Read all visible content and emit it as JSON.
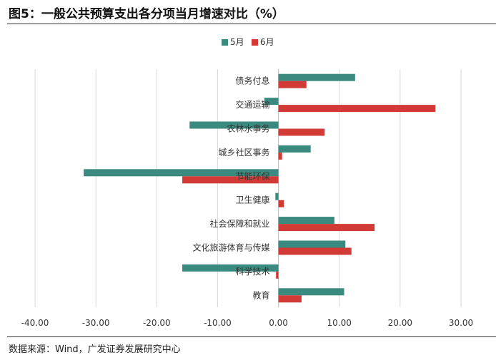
{
  "header": {
    "title": "图5：一般公共预算支出各分项当月增速对比（%）"
  },
  "footer": {
    "source": "数据来源：Wind，广发证券发展研究中心"
  },
  "colors": {
    "may": "#3a8a7f",
    "june": "#d23b35",
    "grid": "#d9d9d9"
  },
  "chart_data": {
    "type": "bar",
    "orientation": "horizontal",
    "title": "一般公共预算支出各分项当月增速对比（%）",
    "xlabel": "",
    "ylabel": "",
    "xlim": [
      -40,
      30
    ],
    "ticks": [
      "-40.00",
      "-30.00",
      "-20.00",
      "-10.00",
      "0.00",
      "10.00",
      "20.00",
      "30.00"
    ],
    "tick_values": [
      -40,
      -30,
      -20,
      -10,
      0,
      10,
      20,
      30
    ],
    "grid": true,
    "legend_position": "top",
    "categories": [
      "债务付息",
      "交通运输",
      "农林水事务",
      "城乡社区事务",
      "节能环保",
      "卫生健康",
      "社会保障和就业",
      "文化旅游体育与传媒",
      "科学技术",
      "教育"
    ],
    "series": [
      {
        "name": "5月",
        "values": [
          12.6,
          -2.3,
          -14.6,
          5.3,
          -32.0,
          -0.5,
          9.2,
          11.0,
          -15.8,
          10.8
        ]
      },
      {
        "name": "6月",
        "values": [
          4.6,
          25.8,
          7.6,
          0.6,
          -15.8,
          0.9,
          15.8,
          12.0,
          -0.4,
          3.8
        ]
      }
    ]
  }
}
